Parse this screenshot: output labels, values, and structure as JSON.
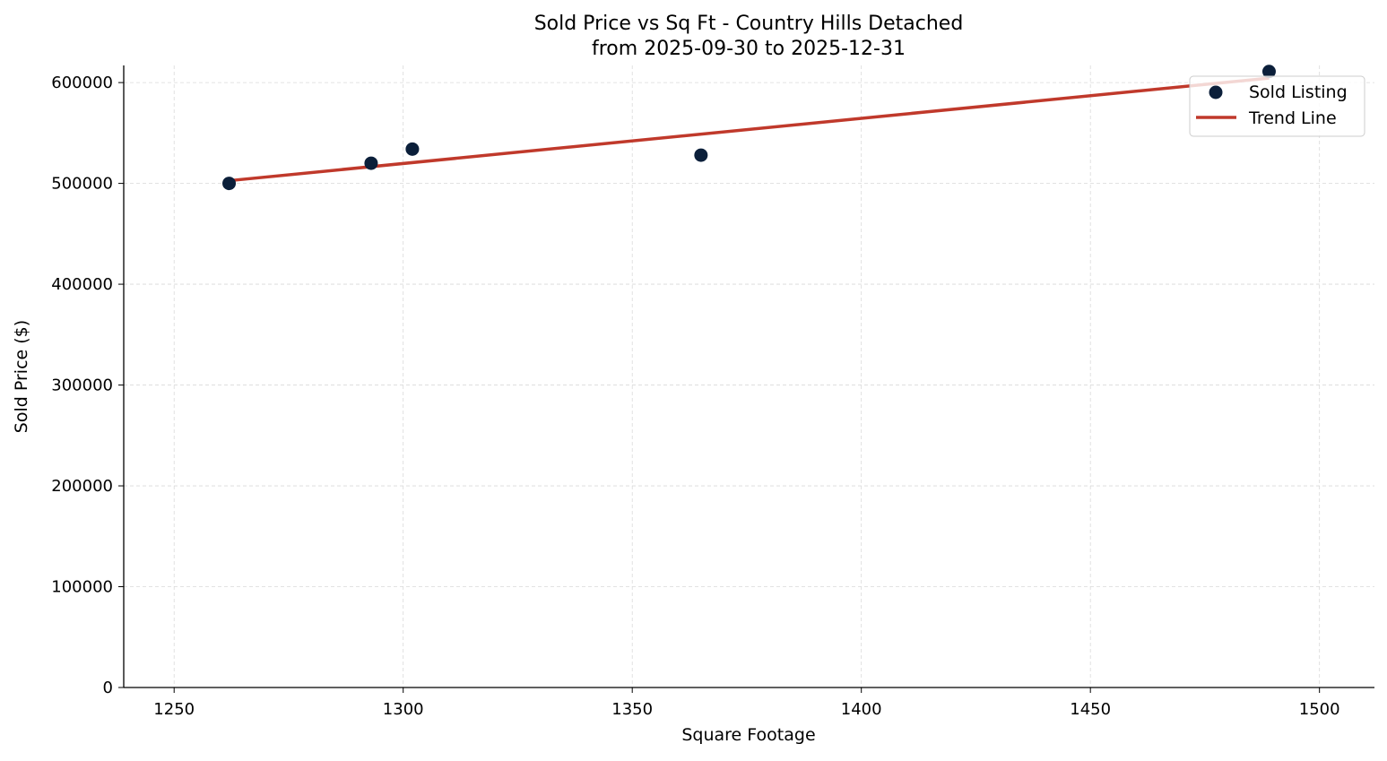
{
  "chart_data": {
    "type": "scatter",
    "title": "Sold Price vs Sq Ft - Country Hills Detached",
    "subtitle": "from 2025-09-30 to 2025-12-31",
    "xlabel": "Square Footage",
    "ylabel": "Sold Price ($)",
    "xlim": [
      1239,
      1512
    ],
    "ylim": [
      0,
      617000
    ],
    "xticks": [
      1250,
      1300,
      1350,
      1400,
      1450,
      1500
    ],
    "yticks": [
      0,
      100000,
      200000,
      300000,
      400000,
      500000,
      600000
    ],
    "grid": true,
    "legend_position": "top-right",
    "series": [
      {
        "name": "Sold Listing",
        "type": "scatter",
        "color": "#0b1f3a",
        "x": [
          1262,
          1293,
          1302,
          1365,
          1489
        ],
        "y": [
          500000,
          520000,
          534000,
          528000,
          611000
        ]
      },
      {
        "name": "Trend Line",
        "type": "line",
        "color": "#c0392b",
        "x": [
          1262,
          1489
        ],
        "y": [
          502700,
          604400
        ]
      }
    ]
  }
}
